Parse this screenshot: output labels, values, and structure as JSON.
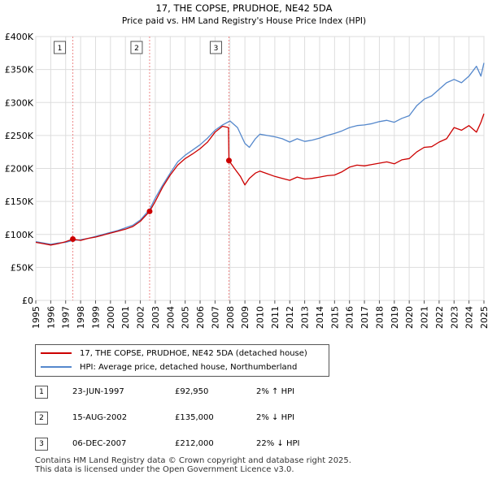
{
  "chart_data": {
    "type": "line",
    "title": "17, THE COPSE, PRUDHOE, NE42 5DA",
    "subtitle": "Price paid vs. HM Land Registry's House Price Index (HPI)",
    "xlim": [
      1995,
      2025
    ],
    "ylim": [
      0,
      400000
    ],
    "x_ticks": [
      "1995",
      "1996",
      "1997",
      "1998",
      "1999",
      "2000",
      "2001",
      "2002",
      "2003",
      "2004",
      "2005",
      "2006",
      "2007",
      "2008",
      "2009",
      "2010",
      "2011",
      "2012",
      "2013",
      "2014",
      "2015",
      "2016",
      "2017",
      "2018",
      "2019",
      "2020",
      "2021",
      "2022",
      "2023",
      "2024",
      "2025"
    ],
    "y_ticks": [
      {
        "value": 0,
        "label": "£0"
      },
      {
        "value": 50000,
        "label": "£50K"
      },
      {
        "value": 100000,
        "label": "£100K"
      },
      {
        "value": 150000,
        "label": "£150K"
      },
      {
        "value": 200000,
        "label": "£200K"
      },
      {
        "value": 250000,
        "label": "£250K"
      },
      {
        "value": 300000,
        "label": "£300K"
      },
      {
        "value": 350000,
        "label": "£350K"
      },
      {
        "value": 400000,
        "label": "£400K"
      }
    ],
    "grid": true,
    "series": [
      {
        "name": "17, THE COPSE, PRUDHOE, NE42 5DA (detached house)",
        "color": "#cc0000",
        "x": [
          1995.0,
          1995.5,
          1996.0,
          1996.5,
          1997.0,
          1997.48,
          1998.0,
          1998.5,
          1999.0,
          1999.5,
          2000.0,
          2000.5,
          2001.0,
          2001.5,
          2002.0,
          2002.62,
          2003.0,
          2003.5,
          2004.0,
          2004.5,
          2005.0,
          2005.5,
          2006.0,
          2006.5,
          2007.0,
          2007.5,
          2007.9,
          2007.93,
          2008.3,
          2008.7,
          2009.0,
          2009.3,
          2009.7,
          2010.0,
          2010.5,
          2011.0,
          2011.5,
          2012.0,
          2012.5,
          2013.0,
          2013.5,
          2014.0,
          2014.5,
          2015.0,
          2015.5,
          2016.0,
          2016.5,
          2017.0,
          2017.5,
          2018.0,
          2018.5,
          2019.0,
          2019.5,
          2020.0,
          2020.5,
          2021.0,
          2021.5,
          2022.0,
          2022.5,
          2023.0,
          2023.5,
          2024.0,
          2024.5,
          2024.8,
          2025.0
        ],
        "y": [
          88000,
          86000,
          84000,
          86000,
          89000,
          92950,
          91000,
          94000,
          96000,
          99000,
          102000,
          105000,
          108000,
          112000,
          120000,
          135000,
          150000,
          172000,
          190000,
          205000,
          215000,
          222000,
          230000,
          240000,
          255000,
          264000,
          262000,
          212000,
          200000,
          188000,
          175000,
          185000,
          193000,
          196000,
          192000,
          188000,
          185000,
          182000,
          187000,
          184000,
          185000,
          187000,
          189000,
          190000,
          195000,
          202000,
          205000,
          204000,
          206000,
          208000,
          210000,
          207000,
          213000,
          215000,
          225000,
          232000,
          233000,
          240000,
          245000,
          262000,
          258000,
          265000,
          255000,
          270000,
          283000
        ]
      },
      {
        "name": "HPI: Average price, detached house, Northumberland",
        "color": "#5588cc",
        "x": [
          1995.0,
          1995.5,
          1996.0,
          1996.5,
          1997.0,
          1997.48,
          1998.0,
          1998.5,
          1999.0,
          1999.5,
          2000.0,
          2000.5,
          2001.0,
          2001.5,
          2002.0,
          2002.62,
          2003.0,
          2003.5,
          2004.0,
          2004.5,
          2005.0,
          2005.5,
          2006.0,
          2006.5,
          2007.0,
          2007.5,
          2008.0,
          2008.5,
          2009.0,
          2009.3,
          2009.7,
          2010.0,
          2010.5,
          2011.0,
          2011.5,
          2012.0,
          2012.5,
          2013.0,
          2013.5,
          2014.0,
          2014.5,
          2015.0,
          2015.5,
          2016.0,
          2016.5,
          2017.0,
          2017.5,
          2018.0,
          2018.5,
          2019.0,
          2019.5,
          2020.0,
          2020.5,
          2021.0,
          2021.5,
          2022.0,
          2022.5,
          2023.0,
          2023.5,
          2024.0,
          2024.5,
          2024.8,
          2025.0
        ],
        "y": [
          89000,
          87000,
          85000,
          87000,
          88000,
          91000,
          92000,
          94000,
          97000,
          100000,
          103000,
          106000,
          110000,
          114000,
          122000,
          138000,
          155000,
          175000,
          193000,
          210000,
          220000,
          228000,
          236000,
          246000,
          258000,
          266000,
          272000,
          262000,
          238000,
          232000,
          245000,
          252000,
          250000,
          248000,
          245000,
          240000,
          245000,
          241000,
          243000,
          246000,
          250000,
          253000,
          257000,
          262000,
          265000,
          266000,
          268000,
          271000,
          273000,
          270000,
          276000,
          280000,
          295000,
          305000,
          310000,
          320000,
          330000,
          335000,
          330000,
          340000,
          355000,
          340000,
          360000
        ]
      }
    ],
    "sales": [
      {
        "num": "1",
        "x": 1997.48,
        "price": 92950
      },
      {
        "num": "2",
        "x": 2002.62,
        "price": 135000
      },
      {
        "num": "3",
        "x": 2007.93,
        "price": 212000
      }
    ]
  },
  "legend": [
    {
      "label": "17, THE COPSE, PRUDHOE, NE42 5DA (detached house)",
      "color": "#cc0000"
    },
    {
      "label": "HPI: Average price, detached house, Northumberland",
      "color": "#5588cc"
    }
  ],
  "table": [
    {
      "num": "1",
      "date": "23-JUN-1997",
      "price": "£92,950",
      "hpi": "2% ↑ HPI"
    },
    {
      "num": "2",
      "date": "15-AUG-2002",
      "price": "£135,000",
      "hpi": "2% ↓ HPI"
    },
    {
      "num": "3",
      "date": "06-DEC-2007",
      "price": "£212,000",
      "hpi": "22% ↓ HPI"
    }
  ],
  "footer": {
    "line1": "Contains HM Land Registry data © Crown copyright and database right 2025.",
    "line2": "This data is licensed under the Open Government Licence v3.0."
  }
}
